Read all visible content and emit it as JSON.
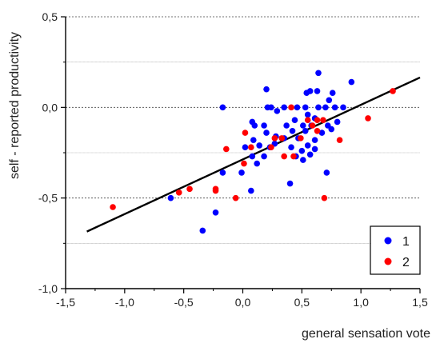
{
  "chart_data": {
    "type": "scatter",
    "title": "",
    "xlabel": "general sensation vote",
    "ylabel": "self - reported productivity",
    "xlim": [
      -1.5,
      1.5
    ],
    "ylim": [
      -1.0,
      0.5
    ],
    "xticks": [
      -1.5,
      -1.0,
      -0.5,
      0.0,
      0.5,
      1.0,
      1.5
    ],
    "xtick_labels": [
      "-1,5",
      "-1,0",
      "-0,5",
      "0,0",
      "0,5",
      "1,0",
      "1,5"
    ],
    "yticks": [
      -1.0,
      -0.5,
      0.0,
      0.5
    ],
    "ytick_labels": [
      "-1,0",
      "-0,5",
      "0,0",
      "0,5"
    ],
    "grid": {
      "major_y": [
        -0.5,
        0.0,
        0.5
      ],
      "minor_y": [
        -0.75,
        -0.25,
        0.25
      ],
      "style": "dotted"
    },
    "legend": {
      "position": "bottom-right"
    },
    "series": [
      {
        "name": "1",
        "color": "#0000ff",
        "points": [
          [
            0.64,
            0.19
          ],
          [
            0.2,
            0.1
          ],
          [
            0.54,
            0.08
          ],
          [
            0.57,
            0.09
          ],
          [
            0.63,
            0.09
          ],
          [
            0.76,
            0.08
          ],
          [
            0.92,
            0.14
          ],
          [
            0.73,
            0.04
          ],
          [
            -0.17,
            0.0
          ],
          [
            0.21,
            0.0
          ],
          [
            0.24,
            0.0
          ],
          [
            0.35,
            0.0
          ],
          [
            0.46,
            0.0
          ],
          [
            0.53,
            0.0
          ],
          [
            0.64,
            0.0
          ],
          [
            0.7,
            0.0
          ],
          [
            0.78,
            0.0
          ],
          [
            0.85,
            0.0
          ],
          [
            0.29,
            -0.02
          ],
          [
            0.55,
            -0.04
          ],
          [
            0.61,
            -0.06
          ],
          [
            0.44,
            -0.07
          ],
          [
            0.08,
            -0.08
          ],
          [
            0.1,
            -0.1
          ],
          [
            0.18,
            -0.1
          ],
          [
            0.37,
            -0.1
          ],
          [
            0.51,
            -0.1
          ],
          [
            0.58,
            -0.1
          ],
          [
            0.72,
            -0.1
          ],
          [
            0.8,
            -0.08
          ],
          [
            0.42,
            -0.13
          ],
          [
            0.2,
            -0.14
          ],
          [
            0.53,
            -0.13
          ],
          [
            0.67,
            -0.14
          ],
          [
            0.75,
            -0.12
          ],
          [
            0.47,
            -0.17
          ],
          [
            0.28,
            -0.16
          ],
          [
            0.09,
            -0.18
          ],
          [
            0.35,
            -0.17
          ],
          [
            0.61,
            -0.18
          ],
          [
            0.14,
            -0.21
          ],
          [
            0.02,
            -0.22
          ],
          [
            0.23,
            -0.22
          ],
          [
            0.27,
            -0.2
          ],
          [
            0.41,
            -0.22
          ],
          [
            0.55,
            -0.21
          ],
          [
            0.5,
            -0.24
          ],
          [
            0.61,
            -0.23
          ],
          [
            0.08,
            -0.27
          ],
          [
            0.18,
            -0.27
          ],
          [
            0.45,
            -0.27
          ],
          [
            0.51,
            -0.29
          ],
          [
            0.57,
            -0.26
          ],
          [
            0.12,
            -0.31
          ],
          [
            -0.01,
            -0.36
          ],
          [
            0.71,
            -0.36
          ],
          [
            -0.17,
            -0.36
          ],
          [
            0.4,
            -0.42
          ],
          [
            0.07,
            -0.46
          ],
          [
            -0.61,
            -0.5
          ],
          [
            -0.23,
            -0.58
          ],
          [
            -0.34,
            -0.68
          ]
        ]
      },
      {
        "name": "2",
        "color": "#ff0000",
        "points": [
          [
            1.27,
            0.09
          ],
          [
            0.41,
            0.0
          ],
          [
            1.06,
            -0.06
          ],
          [
            0.55,
            -0.07
          ],
          [
            0.63,
            -0.07
          ],
          [
            0.68,
            -0.07
          ],
          [
            0.59,
            -0.1
          ],
          [
            0.27,
            -0.17
          ],
          [
            0.33,
            -0.17
          ],
          [
            0.63,
            -0.13
          ],
          [
            0.49,
            -0.17
          ],
          [
            0.82,
            -0.18
          ],
          [
            0.07,
            -0.22
          ],
          [
            0.24,
            -0.22
          ],
          [
            -0.14,
            -0.23
          ],
          [
            0.02,
            -0.14
          ],
          [
            0.35,
            -0.27
          ],
          [
            0.43,
            -0.27
          ],
          [
            0.01,
            -0.31
          ],
          [
            -0.23,
            -0.45
          ],
          [
            -0.23,
            -0.46
          ],
          [
            -0.45,
            -0.45
          ],
          [
            -0.54,
            -0.47
          ],
          [
            -0.06,
            -0.5
          ],
          [
            0.69,
            -0.5
          ],
          [
            -1.1,
            -0.55
          ]
        ]
      }
    ],
    "fit_line": {
      "color": "#000000",
      "x": [
        -1.32,
        1.5
      ],
      "y": [
        -0.685,
        0.165
      ]
    }
  }
}
